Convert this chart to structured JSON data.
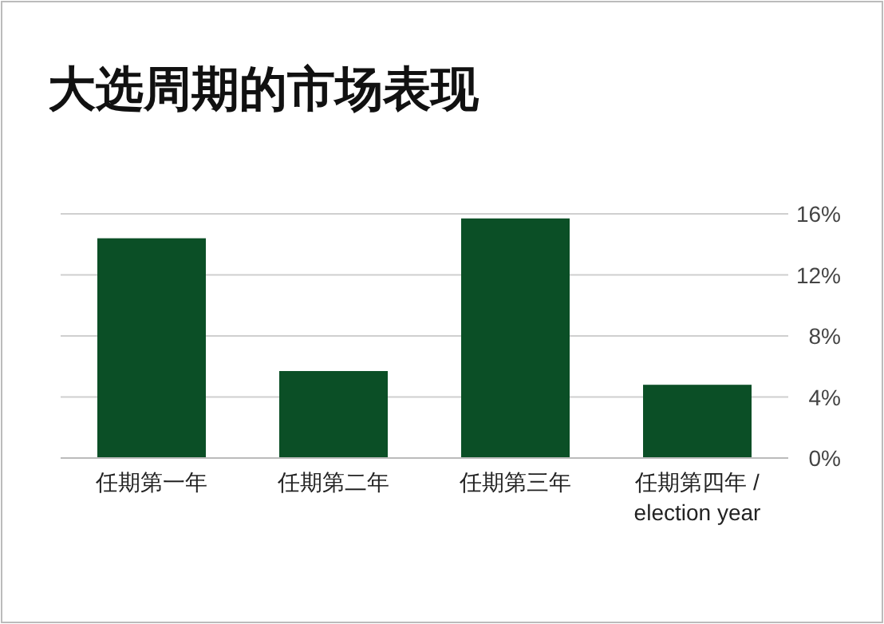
{
  "chart_data": {
    "type": "bar",
    "title": "大选周期的市场表现",
    "categories": [
      "任期第一年",
      "任期第二年",
      "任期第三年",
      "任期第四年 / election year"
    ],
    "values": [
      14.4,
      5.7,
      15.7,
      4.8
    ],
    "color": "#0b4f26",
    "ylim": [
      0,
      16
    ],
    "yticks": [
      {
        "value": 0,
        "label": "0%"
      },
      {
        "value": 4,
        "label": "4%"
      },
      {
        "value": 8,
        "label": "8%"
      },
      {
        "value": 12,
        "label": "12%"
      },
      {
        "value": 16,
        "label": "16%"
      }
    ],
    "grid": "y"
  }
}
